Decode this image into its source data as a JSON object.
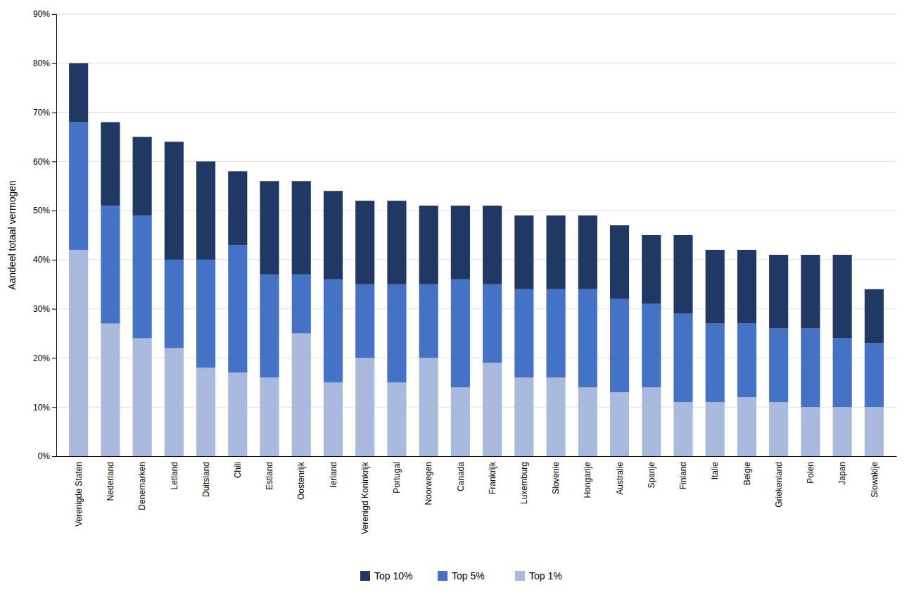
{
  "chart_data": {
    "type": "bar",
    "stacked": true,
    "y_label": "Aandeel totaal vermogen",
    "categories": [
      "Verenigde Staten",
      "Nederland",
      "Denemarken",
      "Letland",
      "Duitsland",
      "Chili",
      "Estland",
      "Oostenrijk",
      "Ierland",
      "Verenigd Koninkrijk",
      "Portugal",
      "Noorwegen",
      "Canada",
      "Frankrijk",
      "Luxemburg",
      "Slovenie",
      "Hongarije",
      "Australie",
      "Spanje",
      "Finland",
      "Italie",
      "Belgie",
      "Griekenland",
      "Polen",
      "Japan",
      "Slowakije"
    ],
    "series": [
      {
        "name": "Top 1%",
        "color": "#aab9de",
        "values": [
          0.42,
          0.27,
          0.24,
          0.22,
          0.18,
          0.17,
          0.16,
          0.25,
          0.15,
          0.2,
          0.15,
          0.2,
          0.14,
          0.19,
          0.16,
          0.16,
          0.14,
          0.13,
          0.14,
          0.11,
          0.11,
          0.12,
          0.11,
          0.1,
          0.1,
          0.1
        ]
      },
      {
        "name": "Top 5%",
        "color": "#4472c4",
        "values": [
          0.26,
          0.24,
          0.25,
          0.18,
          0.22,
          0.26,
          0.21,
          0.12,
          0.21,
          0.15,
          0.2,
          0.15,
          0.22,
          0.16,
          0.18,
          0.18,
          0.2,
          0.19,
          0.17,
          0.18,
          0.16,
          0.15,
          0.15,
          0.16,
          0.14,
          0.13
        ]
      },
      {
        "name": "Top 10%",
        "color": "#1f3864",
        "values": [
          0.12,
          0.17,
          0.16,
          0.24,
          0.2,
          0.15,
          0.19,
          0.19,
          0.18,
          0.17,
          0.17,
          0.16,
          0.15,
          0.16,
          0.15,
          0.15,
          0.15,
          0.15,
          0.14,
          0.16,
          0.15,
          0.15,
          0.15,
          0.15,
          0.17,
          0.11
        ]
      }
    ],
    "ylim": [
      0,
      0.9
    ],
    "yticks": [
      {
        "value": 0.0,
        "label": "0%"
      },
      {
        "value": 0.1,
        "label": "10%"
      },
      {
        "value": 0.2,
        "label": "20%"
      },
      {
        "value": 0.3,
        "label": "30%"
      },
      {
        "value": 0.4,
        "label": "40%"
      },
      {
        "value": 0.5,
        "label": "50%"
      },
      {
        "value": 0.6,
        "label": "60%"
      },
      {
        "value": 0.7,
        "label": "70%"
      },
      {
        "value": 0.8,
        "label": "80%"
      },
      {
        "value": 0.9,
        "label": "90%"
      }
    ],
    "grid": true,
    "legend": "bottom"
  }
}
